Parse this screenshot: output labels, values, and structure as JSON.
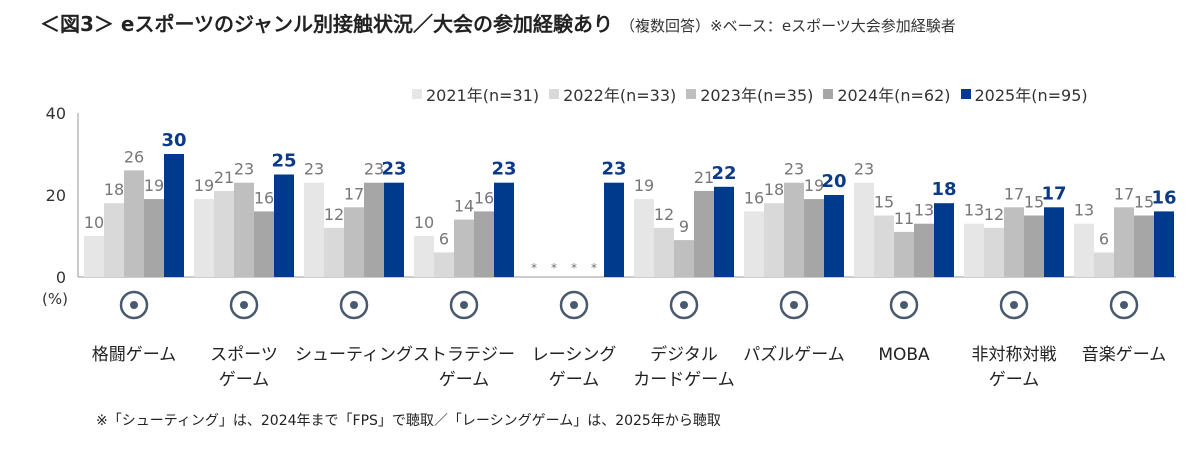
{
  "title": {
    "main": "＜図3＞ eスポーツのジャンル別接触状況／大会の参加経験あり",
    "sub": "（複数回答）※ベース：eスポーツ大会参加経験者"
  },
  "note": "※「シューティング」は、2024年まで「FPS」で聴取／「レーシングゲーム」は、2025年から聴取",
  "chart_data": {
    "type": "bar",
    "ylabel": "(%)",
    "ylim": [
      0,
      40
    ],
    "yticks": [
      "0",
      "20",
      "40"
    ],
    "categories": [
      [
        "格闘ゲーム"
      ],
      [
        "スポーツ",
        "ゲーム"
      ],
      [
        "シューティング"
      ],
      [
        "ストラテジー",
        "ゲーム"
      ],
      [
        "レーシング",
        "ゲーム"
      ],
      [
        "デジタル",
        "カードゲーム"
      ],
      [
        "パズルゲーム"
      ],
      [
        "MOBA"
      ],
      [
        "非対称対戦",
        "ゲーム"
      ],
      [
        "音楽ゲーム"
      ]
    ],
    "icons": [
      "boxing-gloves-icon",
      "soccer-ball-icon",
      "crosshair-icon",
      "sword-chess-knight-icon",
      "race-car-icon",
      "digital-card-icon",
      "puzzle-piece-icon",
      "moba-soldier-icon",
      "asymmetric-battle-icon",
      "music-note-icon"
    ],
    "missing_marker": "*",
    "series": [
      {
        "name": "2021年(n=31)",
        "color": "#e6e6e6",
        "values": [
          10,
          19,
          23,
          10,
          null,
          19,
          16,
          23,
          13,
          13
        ]
      },
      {
        "name": "2022年(n=33)",
        "color": "#d9d9d9",
        "values": [
          18,
          21,
          12,
          6,
          null,
          12,
          18,
          15,
          12,
          6
        ]
      },
      {
        "name": "2023年(n=35)",
        "color": "#bfbfbf",
        "values": [
          26,
          23,
          17,
          14,
          null,
          9,
          23,
          11,
          17,
          17
        ]
      },
      {
        "name": "2024年(n=62)",
        "color": "#a6a6a6",
        "values": [
          19,
          16,
          23,
          16,
          null,
          21,
          19,
          13,
          15,
          15
        ]
      },
      {
        "name": "2025年(n=95)",
        "color": "#003a8c",
        "values": [
          30,
          25,
          23,
          23,
          23,
          22,
          20,
          18,
          17,
          16
        ]
      }
    ]
  }
}
